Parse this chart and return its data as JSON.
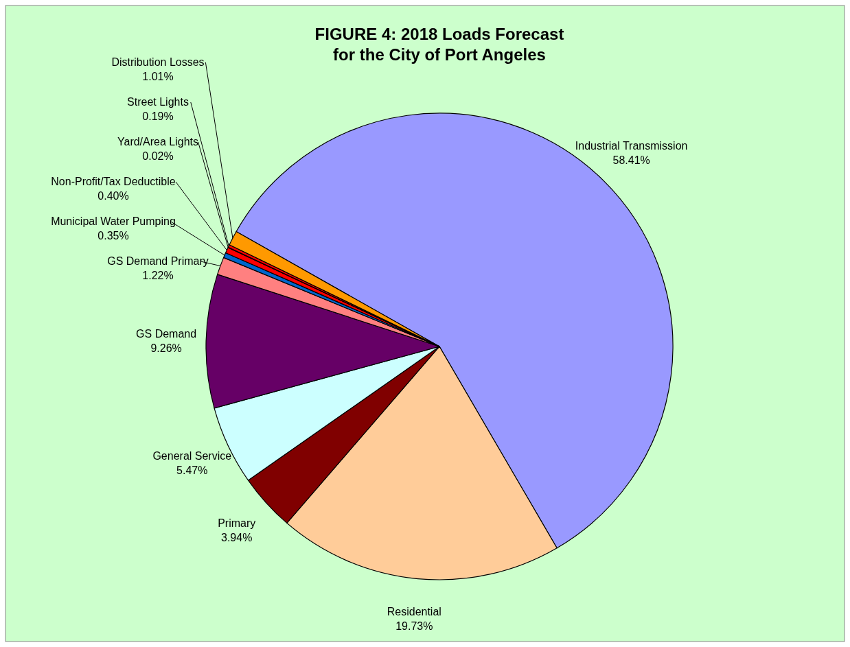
{
  "chart_data": {
    "type": "pie",
    "title": "FIGURE 4: 2018 Loads Forecast\nfor the City of Port Angeles",
    "categories": [
      "Industrial Transmission",
      "Residential",
      "Primary",
      "General Service",
      "GS Demand",
      "GS Demand Primary",
      "Municipal Water Pumping",
      "Non-Profit/Tax Deductible",
      "Yard/Area Lights",
      "Street Lights",
      "Distribution Losses"
    ],
    "values": [
      58.41,
      19.73,
      3.94,
      5.47,
      9.26,
      1.22,
      0.35,
      0.4,
      0.02,
      0.19,
      1.01
    ],
    "value_labels": [
      "58.41%",
      "19.73%",
      "3.94%",
      "5.47%",
      "9.26%",
      "1.22%",
      "0.35%",
      "0.40%",
      "0.02%",
      "0.19%",
      "1.01%"
    ],
    "colors": [
      "#9999ff",
      "#ffcc99",
      "#800000",
      "#ccffff",
      "#660066",
      "#ff8080",
      "#0066cc",
      "#ff0000",
      "#ff0000",
      "#ff0000",
      "#ff9900"
    ]
  }
}
